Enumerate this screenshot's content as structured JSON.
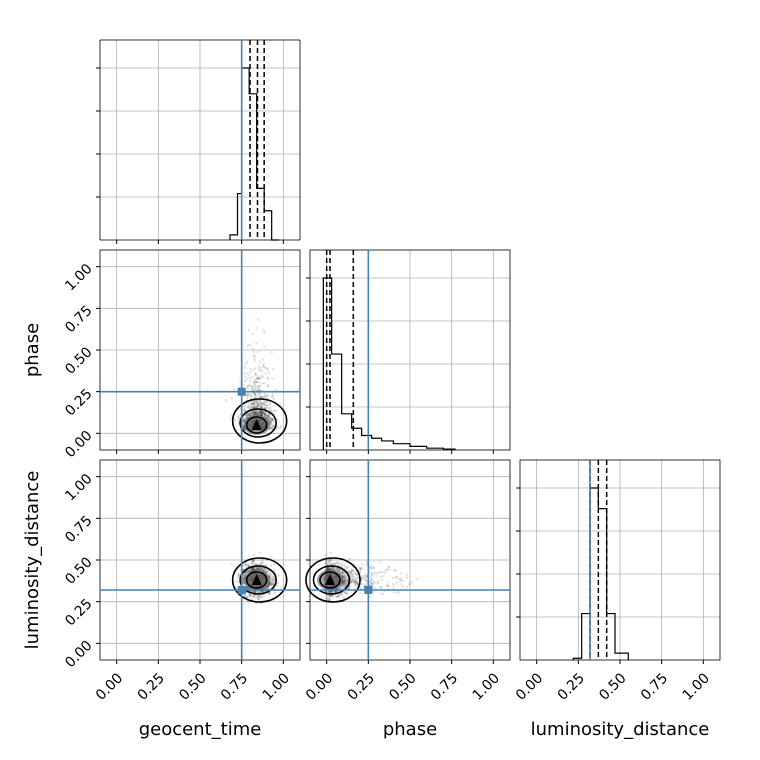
{
  "chart_data": {
    "type": "corner",
    "parameters": [
      "geocent_time",
      "phase",
      "luminosity_distance"
    ],
    "truths": {
      "geocent_time": 0.75,
      "phase": 0.25,
      "luminosity_distance": 0.32
    },
    "truth_color": "#4682b4",
    "grid": true,
    "axis_range": [
      -0.1,
      1.1
    ],
    "tick_values": [
      0.0,
      0.25,
      0.5,
      0.75,
      1.0
    ],
    "tick_labels": [
      "0.00",
      "0.25",
      "0.50",
      "0.75",
      "1.00"
    ],
    "histograms": [
      {
        "parameter": "geocent_time",
        "edges": [
          0.68,
          0.725,
          0.75,
          0.795,
          0.84,
          0.885,
          0.93,
          0.975
        ],
        "counts": [
          0.03,
          0.27,
          1.0,
          0.85,
          0.3,
          0.17,
          0.0
        ],
        "quantiles": [
          0.8,
          0.845,
          0.885
        ]
      },
      {
        "parameter": "phase",
        "edges": [
          -0.02,
          0.03,
          0.09,
          0.15,
          0.21,
          0.27,
          0.33,
          0.4,
          0.5,
          0.6,
          0.7,
          0.77
        ],
        "counts": [
          0.95,
          0.53,
          0.2,
          0.12,
          0.08,
          0.065,
          0.05,
          0.035,
          0.02,
          0.01,
          0.005
        ],
        "quantiles": [
          0.0,
          0.02,
          0.16
        ]
      },
      {
        "parameter": "luminosity_distance",
        "edges": [
          0.22,
          0.27,
          0.32,
          0.37,
          0.42,
          0.47,
          0.55
        ],
        "counts": [
          0.01,
          0.27,
          1.0,
          0.88,
          0.27,
          0.04
        ],
        "quantiles": [
          0.32,
          0.37,
          0.42
        ]
      }
    ],
    "scatter_2d": [
      {
        "x": "geocent_time",
        "y": "phase",
        "center": [
          0.84,
          0.05
        ],
        "spread": [
          0.045,
          0.06
        ]
      },
      {
        "x": "geocent_time",
        "y": "luminosity_distance",
        "center": [
          0.84,
          0.38
        ],
        "spread": [
          0.045,
          0.045
        ]
      },
      {
        "x": "phase",
        "y": "luminosity_distance",
        "center": [
          0.02,
          0.38
        ],
        "spread": [
          0.06,
          0.045
        ]
      }
    ]
  }
}
